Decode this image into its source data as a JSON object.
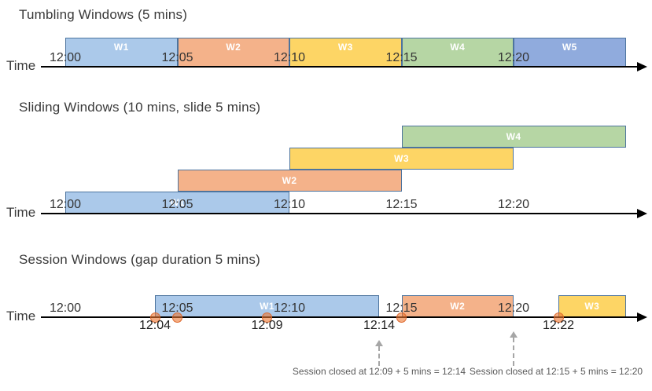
{
  "colors": {
    "window_border": "#4d749e",
    "axis": "#000000",
    "event_dot_fill": "rgba(236,118,48,0.60)",
    "event_dot_border": "rgba(219,96,34,0.85)",
    "gray_arrow": "#a6a6a6",
    "fills": {
      "blue": "#abc9ea",
      "orange": "#f4b28a",
      "yellow": "#fdd565",
      "green": "#b6d6a4",
      "blue2": "#90abdd"
    }
  },
  "time_axis": {
    "label": "Time",
    "ticks": [
      "12:00",
      "12:05",
      "12:10",
      "12:15",
      "12:20"
    ]
  },
  "diagrams": [
    {
      "key": "tumbling",
      "title": "Tumbling Windows (5 mins)",
      "windows": [
        {
          "label": "W1",
          "start": "12:00",
          "end": "12:05",
          "color": "blue"
        },
        {
          "label": "W2",
          "start": "12:05",
          "end": "12:10",
          "color": "orange"
        },
        {
          "label": "W3",
          "start": "12:10",
          "end": "12:15",
          "color": "yellow"
        },
        {
          "label": "W4",
          "start": "12:15",
          "end": "12:20",
          "color": "green"
        },
        {
          "label": "W5",
          "start": "12:20",
          "end": "12:25",
          "color": "blue2"
        }
      ]
    },
    {
      "key": "sliding",
      "title": "Sliding Windows (10 mins, slide 5 mins)",
      "windows": [
        {
          "label": "W1",
          "start": "12:00",
          "end": "12:10",
          "color": "blue",
          "row": 0
        },
        {
          "label": "W2",
          "start": "12:05",
          "end": "12:15",
          "color": "orange",
          "row": 1
        },
        {
          "label": "W3",
          "start": "12:10",
          "end": "12:20",
          "color": "yellow",
          "row": 2
        },
        {
          "label": "W4",
          "start": "12:15",
          "end": "12:25",
          "color": "green",
          "row": 3
        }
      ]
    },
    {
      "key": "session",
      "title": "Session Windows (gap duration 5 mins)",
      "windows": [
        {
          "label": "W1",
          "start": "12:04",
          "end": "12:14",
          "color": "blue"
        },
        {
          "label": "W2",
          "start": "12:15",
          "end": "12:20",
          "color": "orange"
        },
        {
          "label": "W3",
          "start": "12:22",
          "end": "12:25",
          "color": "yellow"
        }
      ],
      "events": [
        "12:04",
        "12:05",
        "12:09",
        "12:15",
        "12:22"
      ],
      "below_labels": [
        {
          "time": "12:04",
          "text": "12:04"
        },
        {
          "time": "12:09",
          "text": "12:09"
        },
        {
          "time": "12:14",
          "text": "12:14"
        },
        {
          "time": "12:22",
          "text": "12:22"
        }
      ],
      "annotations": [
        {
          "text": "Session closed at 12:09 + 5 mins = 12:14",
          "arrow_time": "12:14"
        },
        {
          "text": "Session closed at 12:15 + 5 mins = 12:20",
          "arrow_time": "12:20"
        }
      ]
    }
  ]
}
